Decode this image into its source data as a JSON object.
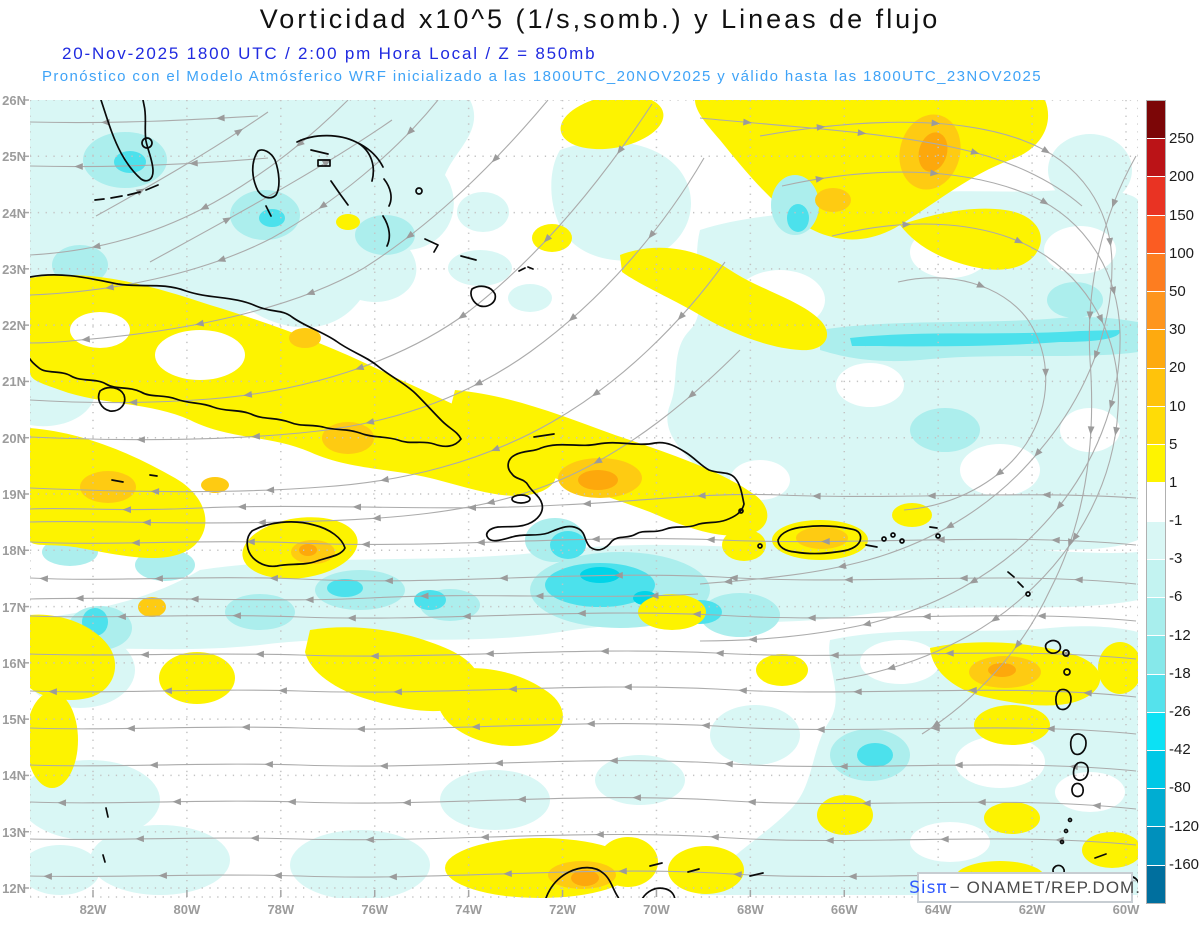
{
  "header": {
    "title": "Vorticidad x10^5 (1/s,somb.) y Lineas de flujo",
    "datetime_line": "20-Nov-2025   1800 UTC / 2:00 pm Hora Local / Z = 850mb",
    "forecast_line": "Pronóstico con el Modelo Atmósferico WRF inicializado a las 1800UTC_20NOV2025 y válido hasta las  1800UTC_23NOV2025"
  },
  "axes": {
    "lat_labels": [
      "26N",
      "25N",
      "24N",
      "23N",
      "22N",
      "21N",
      "20N",
      "19N",
      "18N",
      "17N",
      "16N",
      "15N",
      "14N",
      "13N",
      "12N"
    ],
    "lon_labels": [
      "82W",
      "80W",
      "78W",
      "76W",
      "74W",
      "72W",
      "70W",
      "68W",
      "66W",
      "64W",
      "62W",
      "60W"
    ]
  },
  "colorbar": {
    "units": "x10^5 (1/s)",
    "levels": [
      {
        "color": "#7c0607",
        "label": "250"
      },
      {
        "color": "#bb1317",
        "label": "200"
      },
      {
        "color": "#e93323",
        "label": "150"
      },
      {
        "color": "#fb5c22",
        "label": "100"
      },
      {
        "color": "#fd7d20",
        "label": "50"
      },
      {
        "color": "#fe951d",
        "label": "30"
      },
      {
        "color": "#feaa0f",
        "label": "20"
      },
      {
        "color": "#ffc30b",
        "label": "10"
      },
      {
        "color": "#ffdc06",
        "label": "5"
      },
      {
        "color": "#fef400",
        "label": "1"
      },
      {
        "color": "#ffffff",
        "label": "-1"
      },
      {
        "color": "#d9f7f5",
        "label": "-3"
      },
      {
        "color": "#c3f3f1",
        "label": "-6"
      },
      {
        "color": "#a8eeed",
        "label": "-12"
      },
      {
        "color": "#86e8ea",
        "label": "-18"
      },
      {
        "color": "#55e2ec",
        "label": "-26"
      },
      {
        "color": "#0ce1f4",
        "label": "-42"
      },
      {
        "color": "#00c8e6",
        "label": "-80"
      },
      {
        "color": "#00add2",
        "label": "-120"
      },
      {
        "color": "#0090bc",
        "label": "-160"
      },
      {
        "color": "#006f9e",
        "label": ""
      }
    ]
  },
  "map_colors": {
    "shade_pos_1": "#fdf300",
    "shade_pos_2": "#fecb12",
    "shade_pos_3": "#fda80c",
    "shade_neg_1": "#d9f7f5",
    "shade_neg_2": "#aceeed",
    "shade_neg_3": "#4ce1ec",
    "shade_neg_4": "#00d4e8",
    "streamline": "#ababab",
    "coastline": "#0a0a0a",
    "grid": "#c3c3c3"
  },
  "watermark": {
    "logo": "Sisπ",
    "separator": "−",
    "org": "ONAMET/REP.DOM."
  }
}
